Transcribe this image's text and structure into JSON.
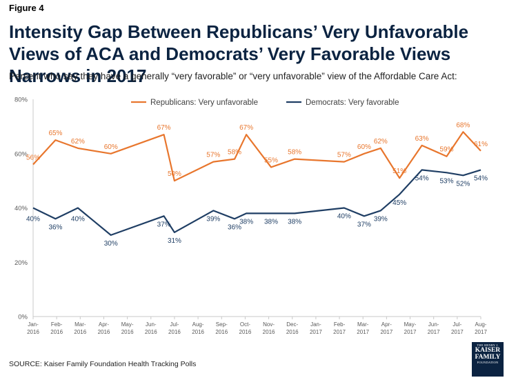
{
  "figure_label": "Figure 4",
  "title": "Intensity Gap Between Republicans’ Very Unfavorable Views of ACA and Democrats’ Very Favorable Views Narrows in 2017",
  "subtitle": "Percent who say they have a generally “very favorable” or “very unfavorable” view of the Affordable Care Act:",
  "source": "SOURCE: Kaiser Family Foundation Health Tracking Polls",
  "logo": {
    "line1": "THE HENRY J.",
    "line2a": "KAISER",
    "line2b": "FAMILY",
    "line3": "FOUNDATION"
  },
  "colors": {
    "republicans": "#e8762d",
    "democrats": "#1f3e64",
    "axis": "#c8c8c8"
  },
  "chart_data": {
    "type": "line",
    "xlabel": "",
    "ylabel": "",
    "ylim": [
      0,
      80
    ],
    "yticks": [
      0,
      20,
      40,
      60,
      80
    ],
    "ytick_labels": [
      "0%",
      "20%",
      "40%",
      "60%",
      "80%"
    ],
    "grid": false,
    "legend_position": "top-center",
    "categories": [
      [
        "Jan-",
        "2016"
      ],
      [
        "Feb-",
        "2016"
      ],
      [
        "Mar-",
        "2016"
      ],
      [
        "Apr-",
        "2016"
      ],
      [
        "May-",
        "2016"
      ],
      [
        "Jun-",
        "2016"
      ],
      [
        "Jul-",
        "2016"
      ],
      [
        "Aug-",
        "2016"
      ],
      [
        "Sep-",
        "2016"
      ],
      [
        "Oct-",
        "2016"
      ],
      [
        "Nov-",
        "2016"
      ],
      [
        "Dec-",
        "2016"
      ],
      [
        "Jan-",
        "2017"
      ],
      [
        "Feb-",
        "2017"
      ],
      [
        "Mar-",
        "2017"
      ],
      [
        "Apr-",
        "2017"
      ],
      [
        "May-",
        "2017"
      ],
      [
        "Jun-",
        "2017"
      ],
      [
        "Jul-",
        "2017"
      ],
      [
        "Aug-",
        "2017"
      ]
    ],
    "series": [
      {
        "name": "Republicans: Very unfavorable",
        "points": [
          {
            "x": 0.0,
            "y": 56,
            "label": "56%"
          },
          {
            "x": 0.95,
            "y": 65,
            "label": "65%"
          },
          {
            "x": 1.9,
            "y": 62,
            "label": "62%"
          },
          {
            "x": 3.3,
            "y": 60,
            "label": "60%"
          },
          {
            "x": 5.55,
            "y": 67,
            "label": "67%"
          },
          {
            "x": 6.0,
            "y": 50,
            "label": "50%"
          },
          {
            "x": 7.65,
            "y": 57,
            "label": "57%"
          },
          {
            "x": 8.55,
            "y": 58,
            "label": "58%"
          },
          {
            "x": 9.05,
            "y": 67,
            "label": "67%"
          },
          {
            "x": 10.1,
            "y": 55,
            "label": "55%"
          },
          {
            "x": 11.1,
            "y": 58,
            "label": "58%"
          },
          {
            "x": 13.2,
            "y": 57,
            "label": "57%"
          },
          {
            "x": 14.05,
            "y": 60,
            "label": "60%"
          },
          {
            "x": 14.75,
            "y": 62,
            "label": "62%"
          },
          {
            "x": 15.55,
            "y": 51,
            "label": "51%"
          },
          {
            "x": 16.5,
            "y": 63,
            "label": "63%"
          },
          {
            "x": 17.55,
            "y": 59,
            "label": "59%"
          },
          {
            "x": 18.25,
            "y": 68,
            "label": "68%"
          },
          {
            "x": 19.0,
            "y": 61,
            "label": "61%"
          }
        ]
      },
      {
        "name": "Democrats: Very favorable",
        "points": [
          {
            "x": 0.0,
            "y": 40,
            "label": "40%"
          },
          {
            "x": 0.95,
            "y": 36,
            "label": "36%"
          },
          {
            "x": 1.9,
            "y": 40,
            "label": "40%"
          },
          {
            "x": 3.3,
            "y": 30,
            "label": "30%"
          },
          {
            "x": 5.55,
            "y": 37,
            "label": "37%"
          },
          {
            "x": 6.0,
            "y": 31,
            "label": "31%"
          },
          {
            "x": 7.65,
            "y": 39,
            "label": "39%"
          },
          {
            "x": 8.55,
            "y": 36,
            "label": "36%"
          },
          {
            "x": 9.05,
            "y": 38,
            "label": "38%"
          },
          {
            "x": 10.1,
            "y": 38,
            "label": "38%"
          },
          {
            "x": 11.1,
            "y": 38,
            "label": "38%"
          },
          {
            "x": 13.2,
            "y": 40,
            "label": "40%"
          },
          {
            "x": 14.05,
            "y": 37,
            "label": "37%"
          },
          {
            "x": 14.75,
            "y": 39,
            "label": "39%"
          },
          {
            "x": 15.55,
            "y": 45,
            "label": "45%"
          },
          {
            "x": 16.5,
            "y": 54,
            "label": "54%"
          },
          {
            "x": 17.55,
            "y": 53,
            "label": "53%"
          },
          {
            "x": 18.25,
            "y": 52,
            "label": "52%"
          },
          {
            "x": 19.0,
            "y": 54,
            "label": "54%"
          }
        ]
      }
    ]
  }
}
